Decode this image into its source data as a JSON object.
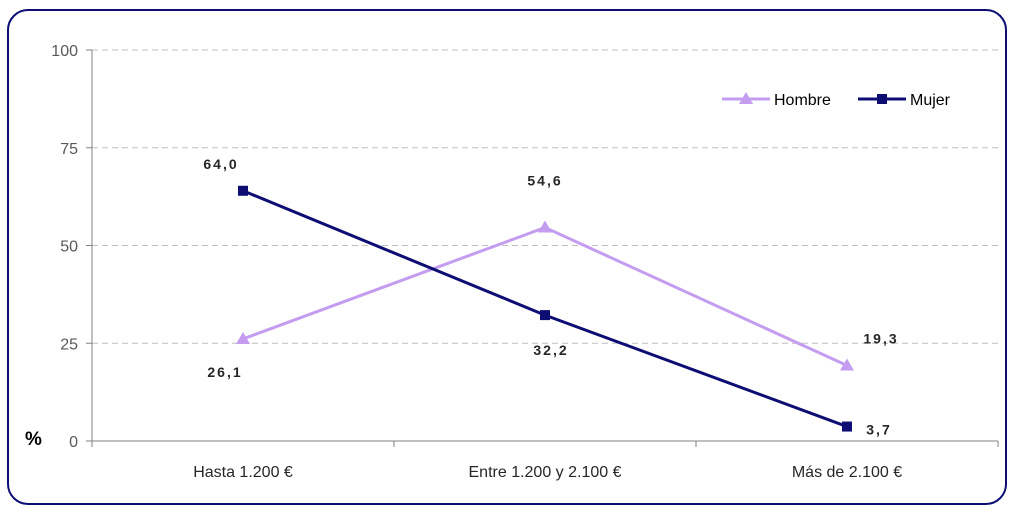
{
  "chart_data": {
    "type": "line",
    "categories": [
      "Hasta 1.200 €",
      "Entre 1.200 y 2.100 €",
      "Más de 2.100 €"
    ],
    "series": [
      {
        "name": "Hombre",
        "values": [
          26.1,
          54.6,
          19.3
        ],
        "labels": [
          "26,1",
          "54,6",
          "19,3"
        ],
        "color": "#c49cf0",
        "marker": "triangle"
      },
      {
        "name": "Mujer",
        "values": [
          64.0,
          32.2,
          3.7
        ],
        "labels": [
          "64,0",
          "32,2",
          "3,7"
        ],
        "color": "#0d0d73",
        "marker": "square"
      }
    ],
    "ylabel": "%",
    "ylim": [
      0,
      100
    ],
    "yticks": [
      0,
      25,
      50,
      75,
      100
    ],
    "grid": true,
    "legend": "top-right",
    "border_color": "#0d0d73"
  }
}
